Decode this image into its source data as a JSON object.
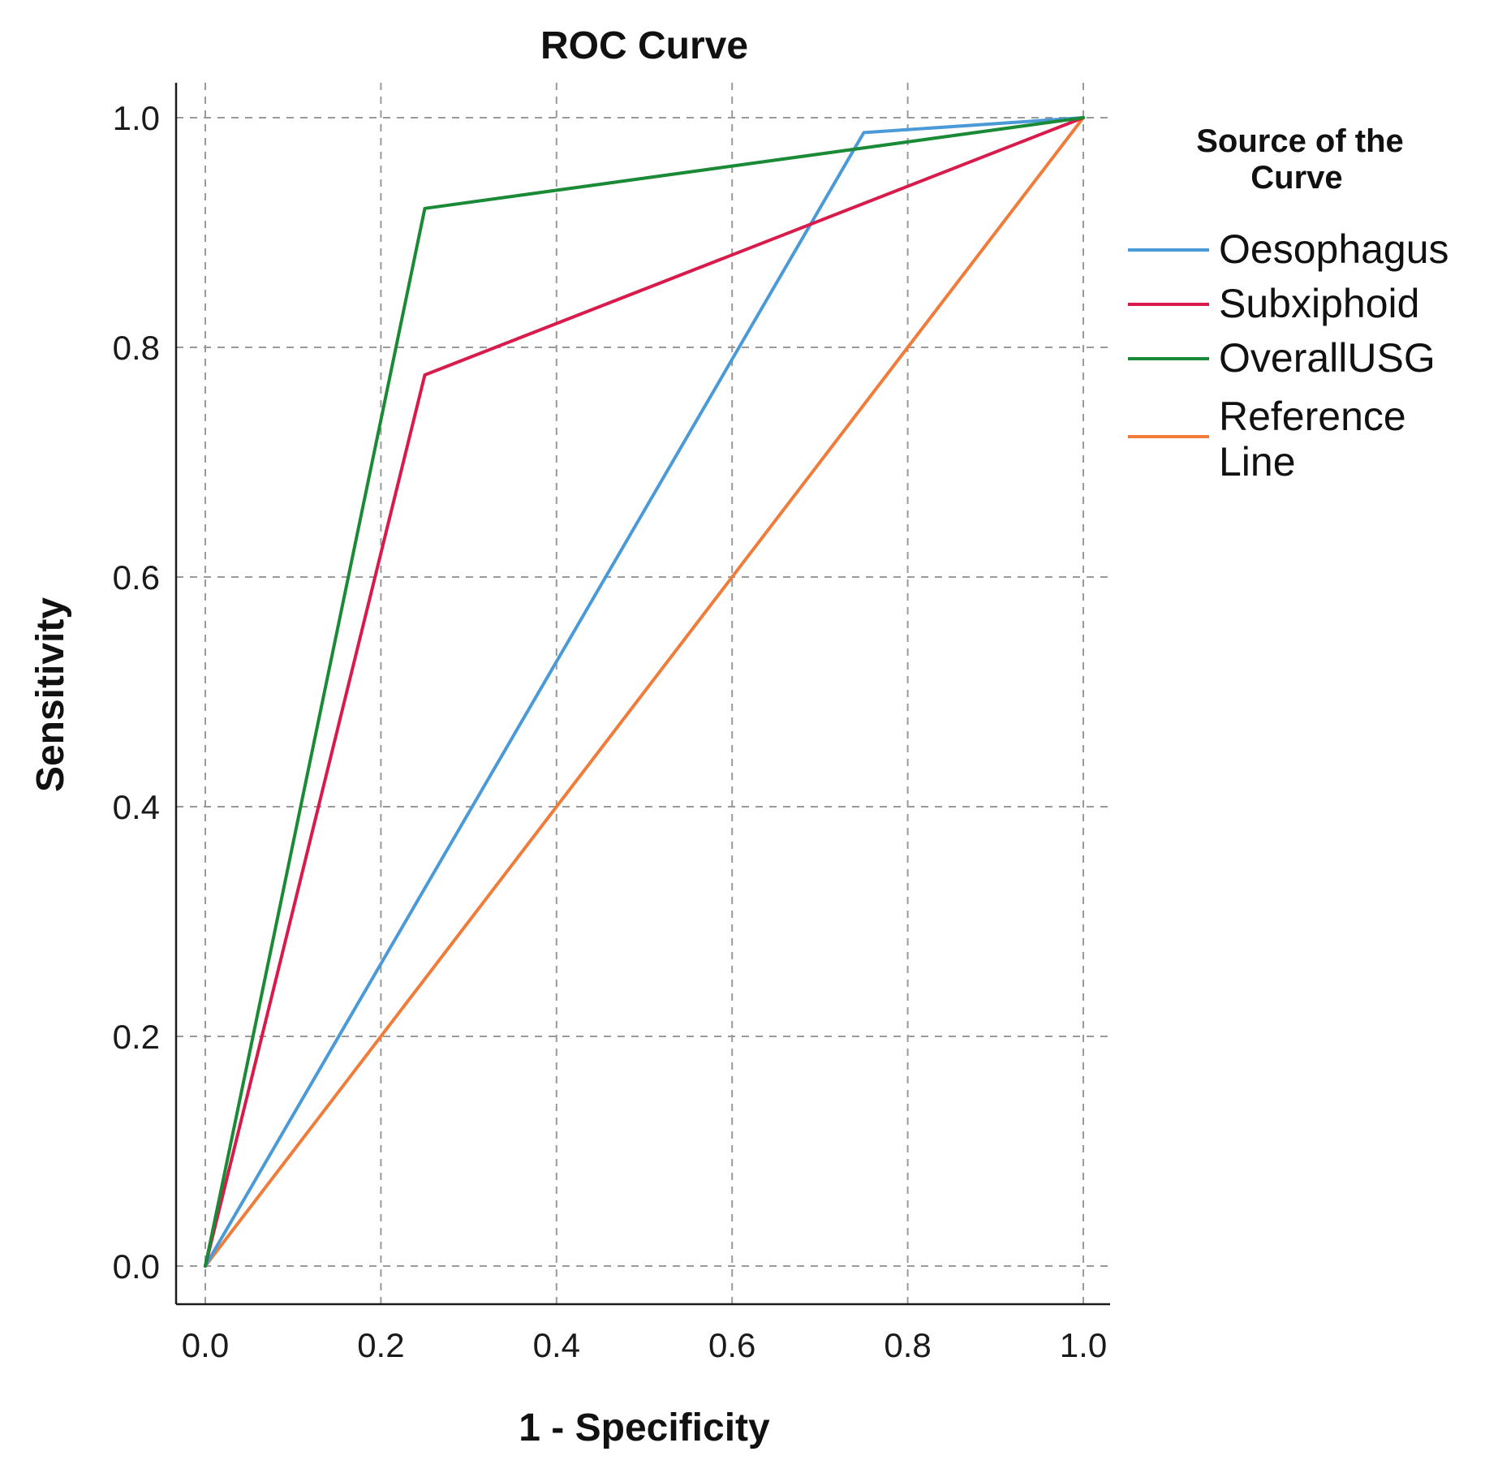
{
  "chart_data": {
    "type": "line",
    "title": "ROC Curve",
    "xlabel": "1 - Specificity",
    "ylabel": "Sensitivity",
    "xlim": [
      0.0,
      1.0
    ],
    "ylim": [
      0.0,
      1.0
    ],
    "grid": true,
    "x_ticks": [
      "0.0",
      "0.2",
      "0.4",
      "0.6",
      "0.8",
      "1.0"
    ],
    "y_ticks": [
      "0.0",
      "0.2",
      "0.4",
      "0.6",
      "0.8",
      "1.0"
    ],
    "legend": {
      "title_line1": "Source of the",
      "title_line2": "Curve",
      "placement": "right"
    },
    "series": [
      {
        "name": "Oesophagus",
        "color": "#4a9ad8",
        "x": [
          0.0,
          0.75,
          1.0
        ],
        "y": [
          0.0,
          0.987,
          1.0
        ]
      },
      {
        "name": "Subxiphoid",
        "color": "#d81b4a",
        "x": [
          0.0,
          0.25,
          1.0
        ],
        "y": [
          0.0,
          0.776,
          1.0
        ]
      },
      {
        "name": "OverallUSG",
        "color": "#1a8a36",
        "x": [
          0.0,
          0.25,
          1.0
        ],
        "y": [
          0.0,
          0.921,
          1.0
        ]
      },
      {
        "name": "Reference Line",
        "label_line1": "Reference",
        "label_line2": "Line",
        "color": "#f07c3a",
        "x": [
          0.0,
          1.0
        ],
        "y": [
          0.0,
          1.0
        ]
      }
    ]
  }
}
